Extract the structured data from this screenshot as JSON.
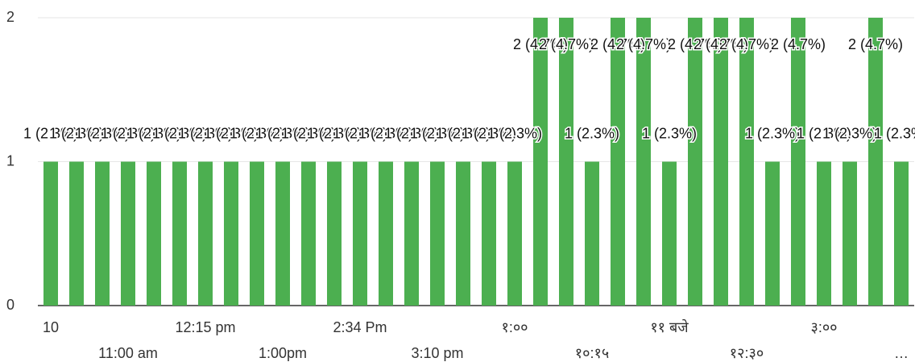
{
  "chart_data": {
    "type": "bar",
    "color": "#4caf50",
    "grid": true,
    "categories": [
      "10",
      null,
      null,
      "11:00 am",
      null,
      null,
      "12:15 pm",
      null,
      null,
      "1:00pm",
      null,
      null,
      "2:34 Pm",
      null,
      null,
      "3:10 pm",
      null,
      null,
      "१:००",
      null,
      null,
      "१०:१५",
      null,
      null,
      "११ बजे",
      null,
      null,
      "१२:३०",
      null,
      null,
      "३:००",
      null,
      null,
      "…"
    ],
    "values": [
      1,
      1,
      1,
      1,
      1,
      1,
      1,
      1,
      1,
      1,
      1,
      1,
      1,
      1,
      1,
      1,
      1,
      1,
      1,
      2,
      2,
      1,
      2,
      2,
      1,
      2,
      2,
      2,
      1,
      2,
      1,
      1,
      2,
      1
    ],
    "value_labels": [
      "1 (2.3%)",
      "1 (2.3%)",
      "1 (2.3%)",
      "1 (2.3%)",
      "1 (2.3%)",
      "1 (2.3%)",
      "1 (2.3%)",
      "1 (2.3%)",
      "1 (2.3%)",
      "1 (2.3%)",
      "1 (2.3%)",
      "1 (2.3%)",
      "1 (2.3%)",
      "1 (2.3%)",
      "1 (2.3%)",
      "1 (2.3%)",
      "1 (2.3%)",
      "1 (2.3%)",
      "1 (2.3%)",
      "2 (4.7%)",
      "2 (4.7%)",
      "1 (2.3%)",
      "2 (4.7%)",
      "2 (4.7%)",
      "1 (2.3%)",
      "2 (4.7%)",
      "2 (4.7%)",
      "2 (4.7%)",
      "1 (2.3%)",
      "2 (4.7%)",
      "1 (2.3%)",
      "1 (2.3%)",
      "2 (4.7%)",
      "1 (2.3%)"
    ],
    "ylim": [
      0,
      2
    ],
    "yticks": [
      0,
      1,
      2
    ]
  }
}
